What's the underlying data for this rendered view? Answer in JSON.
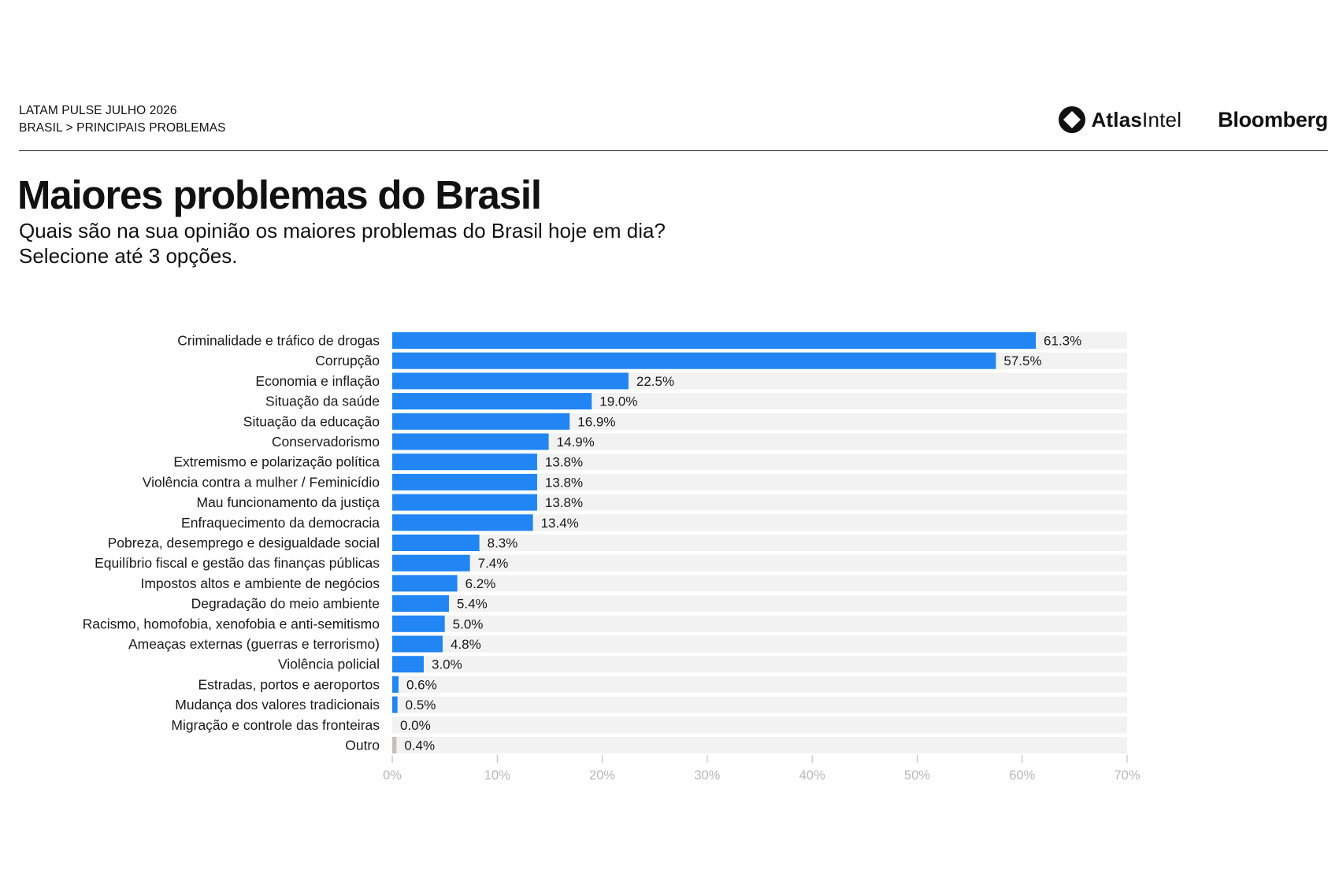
{
  "header": {
    "survey": "LATAM PULSE JULHO 2026",
    "breadcrumb": "BRASIL > PRINCIPAIS PROBLEMAS",
    "logo_atlas_part1": "Atlas",
    "logo_atlas_part2": "Intel",
    "logo_bloomberg": "Bloomberg"
  },
  "colors": {
    "bar": "#2185f4",
    "bar_other": "#c8bfbd",
    "track": "#f2f2f2",
    "tick": "#b8b8b8"
  },
  "chart_data": {
    "type": "bar",
    "orientation": "horizontal",
    "title": "Maiores problemas do Brasil",
    "subtitle": [
      "Quais são na sua opinião os maiores problemas do Brasil hoje em dia?",
      "Selecione até 3 opções."
    ],
    "categories": [
      "Criminalidade e tráfico de drogas",
      "Corrupção",
      "Economia e inflação",
      "Situação da saúde",
      "Situação da educação",
      "Conservadorismo",
      "Extremismo e polarização política",
      "Violência contra a mulher / Feminicídio",
      "Mau funcionamento da justiça",
      "Enfraquecimento da democracia",
      "Pobreza, desemprego e desigualdade social",
      "Equilíbrio fiscal e gestão das finanças públicas",
      "Impostos altos e ambiente de negócios",
      "Degradação do meio ambiente",
      "Racismo, homofobia, xenofobia e anti-semitismo",
      "Ameaças externas (guerras e terrorismo)",
      "Violência policial",
      "Estradas, portos e aeroportos",
      "Mudança dos valores tradicionais",
      "Migração e controle das fronteiras",
      "Outro"
    ],
    "values": [
      61.3,
      57.5,
      22.5,
      19.0,
      16.9,
      14.9,
      13.8,
      13.8,
      13.8,
      13.4,
      8.3,
      7.4,
      6.2,
      5.4,
      5.0,
      4.8,
      3.0,
      0.6,
      0.5,
      0.0,
      0.4
    ],
    "value_labels": [
      "61.3%",
      "57.5%",
      "22.5%",
      "19.0%",
      "16.9%",
      "14.9%",
      "13.8%",
      "13.8%",
      "13.8%",
      "13.4%",
      "8.3%",
      "7.4%",
      "6.2%",
      "5.4%",
      "5.0%",
      "4.8%",
      "3.0%",
      "0.6%",
      "0.5%",
      "0.0%",
      "0.4%"
    ],
    "xlim": [
      0,
      70
    ],
    "x_ticks": [
      0,
      10,
      20,
      30,
      40,
      50,
      60,
      70
    ],
    "x_tick_labels": [
      "0%",
      "10%",
      "20%",
      "30%",
      "40%",
      "50%",
      "60%",
      "70%"
    ],
    "grid": false,
    "legend": "none"
  }
}
